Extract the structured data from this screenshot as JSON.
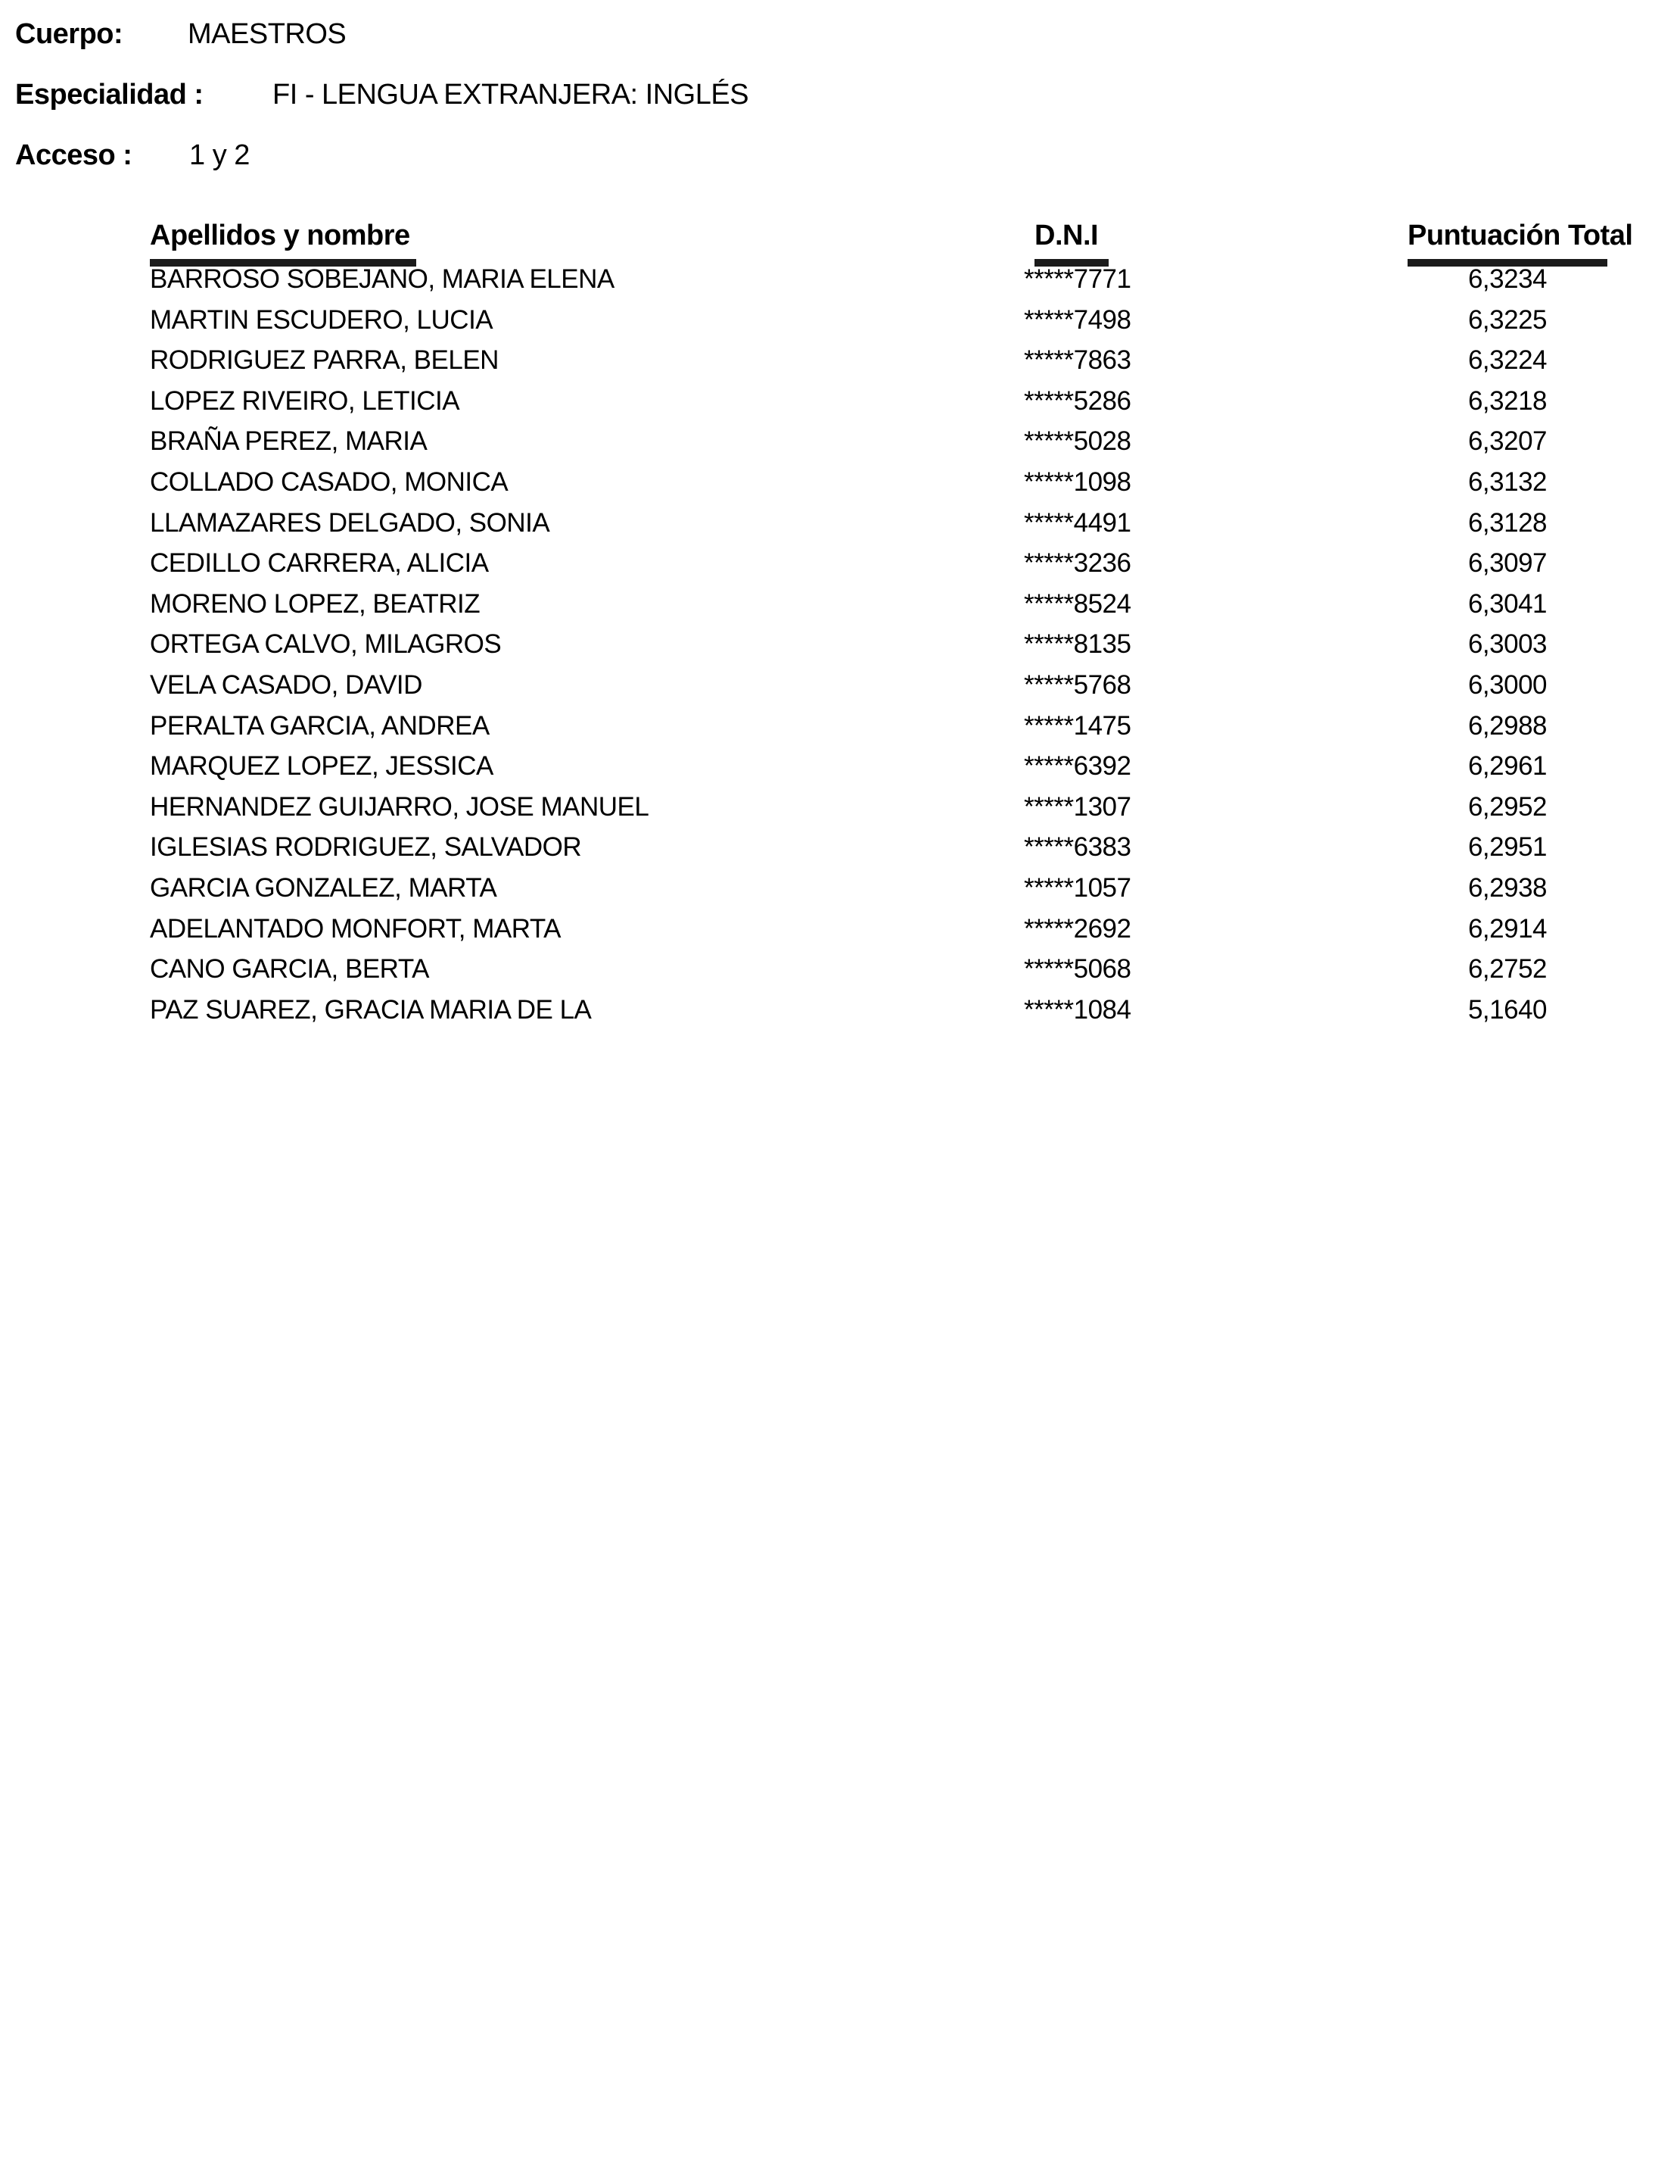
{
  "header": {
    "cuerpo_label": "Cuerpo:",
    "cuerpo_value": "MAESTROS",
    "especialidad_label": "Especialidad :",
    "especialidad_value": "FI - LENGUA EXTRANJERA: INGLÉS",
    "acceso_label": "Acceso :",
    "acceso_value": "1 y 2"
  },
  "table": {
    "columns": [
      "Apellidos y nombre",
      "D.N.I",
      "Puntuación Total"
    ],
    "rows": [
      {
        "name": "BARROSO SOBEJANO, MARIA ELENA",
        "dni": "*****7771",
        "score": "6,3234"
      },
      {
        "name": "MARTIN ESCUDERO, LUCIA",
        "dni": "*****7498",
        "score": "6,3225"
      },
      {
        "name": "RODRIGUEZ PARRA, BELEN",
        "dni": "*****7863",
        "score": "6,3224"
      },
      {
        "name": "LOPEZ RIVEIRO, LETICIA",
        "dni": "*****5286",
        "score": "6,3218"
      },
      {
        "name": "BRAÑA PEREZ, MARIA",
        "dni": "*****5028",
        "score": "6,3207"
      },
      {
        "name": "COLLADO CASADO, MONICA",
        "dni": "*****1098",
        "score": "6,3132"
      },
      {
        "name": "LLAMAZARES DELGADO, SONIA",
        "dni": "*****4491",
        "score": "6,3128"
      },
      {
        "name": "CEDILLO CARRERA, ALICIA",
        "dni": "*****3236",
        "score": "6,3097"
      },
      {
        "name": "MORENO LOPEZ, BEATRIZ",
        "dni": "*****8524",
        "score": "6,3041"
      },
      {
        "name": "ORTEGA CALVO, MILAGROS",
        "dni": "*****8135",
        "score": "6,3003"
      },
      {
        "name": "VELA CASADO, DAVID",
        "dni": "*****5768",
        "score": "6,3000"
      },
      {
        "name": "PERALTA GARCIA, ANDREA",
        "dni": "*****1475",
        "score": "6,2988"
      },
      {
        "name": "MARQUEZ LOPEZ, JESSICA",
        "dni": "*****6392",
        "score": "6,2961"
      },
      {
        "name": "HERNANDEZ GUIJARRO, JOSE MANUEL",
        "dni": "*****1307",
        "score": "6,2952"
      },
      {
        "name": "IGLESIAS RODRIGUEZ, SALVADOR",
        "dni": "*****6383",
        "score": "6,2951"
      },
      {
        "name": "GARCIA GONZALEZ, MARTA",
        "dni": "*****1057",
        "score": "6,2938"
      },
      {
        "name": "ADELANTADO MONFORT, MARTA",
        "dni": "*****2692",
        "score": "6,2914"
      },
      {
        "name": "CANO GARCIA, BERTA",
        "dni": "*****5068",
        "score": "6,2752"
      },
      {
        "name": "PAZ SUAREZ, GRACIA MARIA DE LA",
        "dni": "*****1084",
        "score": "5,1640"
      }
    ]
  },
  "colors": {
    "text": "#000000",
    "background": "#ffffff",
    "header_rule": "#1b1b1b"
  }
}
